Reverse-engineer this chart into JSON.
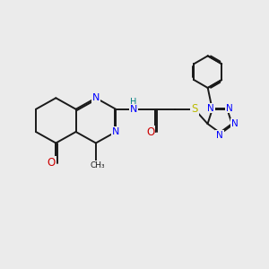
{
  "background_color": "#EBEBEB",
  "bond_color": "#1A1A1A",
  "n_color": "#0000FF",
  "o_color": "#CC0000",
  "s_color": "#BBBB00",
  "h_color": "#008080",
  "line_width": 1.4,
  "figsize": [
    3.0,
    3.0
  ],
  "dpi": 100,
  "xlim": [
    0,
    10
  ],
  "ylim": [
    0,
    10
  ]
}
